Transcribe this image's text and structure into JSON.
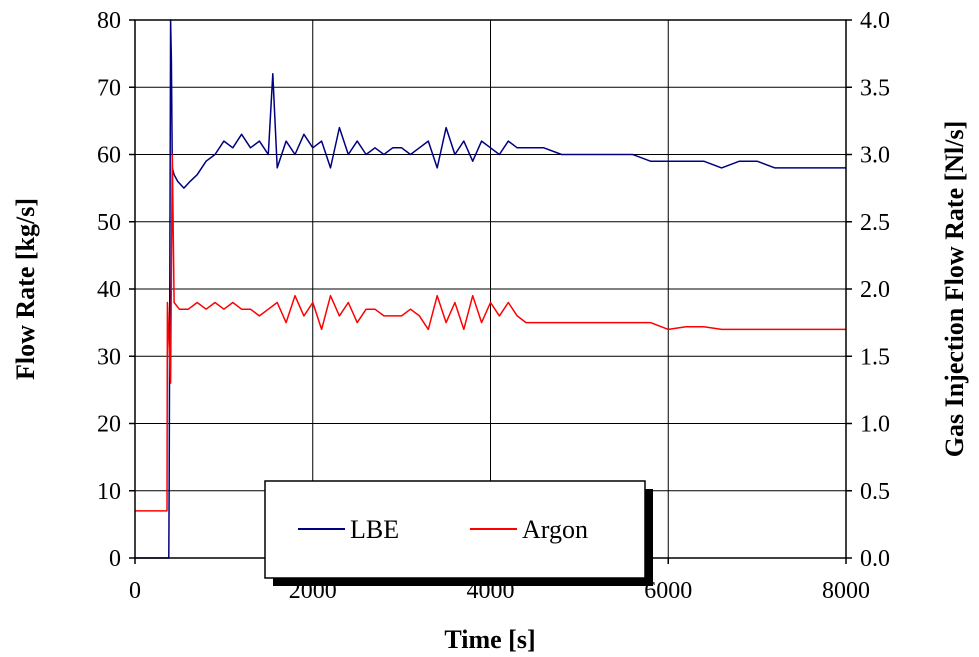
{
  "chart_data": {
    "type": "line",
    "xlabel": "Time [s]",
    "ylabel": "Flow Rate [kg/s]",
    "y2label": "Gas Injection Flow Rate [Nl/s]",
    "xlim": [
      0,
      8000
    ],
    "ylim": [
      0,
      80
    ],
    "y2lim": [
      0,
      4
    ],
    "x_ticks": [
      "0",
      "2000",
      "4000",
      "6000",
      "8000"
    ],
    "y_ticks": [
      "0",
      "10",
      "20",
      "30",
      "40",
      "50",
      "60",
      "70",
      "80"
    ],
    "y2_ticks": [
      "0.0",
      "0.5",
      "1.0",
      "1.5",
      "2.0",
      "2.5",
      "3.0",
      "3.5",
      "4.0"
    ],
    "grid": true,
    "legend_position": "bottom-center",
    "series": [
      {
        "name": "LBE",
        "axis": "left",
        "color": "#000080",
        "x": [
          0,
          380,
          385,
          400,
          410,
          420,
          440,
          480,
          550,
          620,
          700,
          800,
          900,
          1000,
          1100,
          1200,
          1300,
          1400,
          1500,
          1550,
          1600,
          1700,
          1800,
          1900,
          2000,
          2100,
          2200,
          2300,
          2400,
          2500,
          2600,
          2700,
          2800,
          2900,
          3000,
          3100,
          3200,
          3300,
          3400,
          3500,
          3600,
          3700,
          3800,
          3900,
          4000,
          4100,
          4200,
          4300,
          4400,
          4600,
          4800,
          5000,
          5200,
          5400,
          5600,
          5800,
          6000,
          6200,
          6400,
          6600,
          6800,
          7000,
          7200,
          7400,
          7600,
          7800,
          8000
        ],
        "values": [
          0,
          0,
          12,
          80,
          74,
          58,
          57,
          56,
          55,
          56,
          57,
          59,
          60,
          62,
          61,
          63,
          61,
          62,
          60,
          72,
          58,
          62,
          60,
          63,
          61,
          62,
          58,
          64,
          60,
          62,
          60,
          61,
          60,
          61,
          61,
          60,
          61,
          62,
          58,
          64,
          60,
          62,
          59,
          62,
          61,
          60,
          62,
          61,
          61,
          61,
          60,
          60,
          60,
          60,
          60,
          59,
          59,
          59,
          59,
          58,
          59,
          59,
          58,
          58,
          58,
          58,
          58
        ]
      },
      {
        "name": "Argon",
        "axis": "right",
        "color": "#ff0000",
        "x": [
          0,
          360,
          365,
          400,
          420,
          440,
          500,
          600,
          700,
          800,
          900,
          1000,
          1100,
          1200,
          1300,
          1400,
          1500,
          1600,
          1700,
          1800,
          1900,
          2000,
          2100,
          2200,
          2300,
          2400,
          2500,
          2600,
          2700,
          2800,
          2900,
          3000,
          3100,
          3200,
          3300,
          3400,
          3500,
          3600,
          3700,
          3800,
          3900,
          4000,
          4100,
          4200,
          4300,
          4400,
          4600,
          4800,
          5000,
          5200,
          5400,
          5600,
          5800,
          6000,
          6200,
          6400,
          6600,
          6800,
          7000,
          7200,
          7400,
          7600,
          7800,
          8000
        ],
        "values": [
          0.35,
          0.35,
          1.9,
          1.3,
          3.0,
          1.9,
          1.85,
          1.85,
          1.9,
          1.85,
          1.9,
          1.85,
          1.9,
          1.85,
          1.85,
          1.8,
          1.85,
          1.9,
          1.75,
          1.95,
          1.8,
          1.9,
          1.7,
          1.95,
          1.8,
          1.9,
          1.75,
          1.85,
          1.85,
          1.8,
          1.8,
          1.8,
          1.85,
          1.8,
          1.7,
          1.95,
          1.75,
          1.9,
          1.7,
          1.95,
          1.75,
          1.9,
          1.8,
          1.9,
          1.8,
          1.75,
          1.75,
          1.75,
          1.75,
          1.75,
          1.75,
          1.75,
          1.75,
          1.7,
          1.72,
          1.72,
          1.7,
          1.7,
          1.7,
          1.7,
          1.7,
          1.7,
          1.7,
          1.7
        ]
      }
    ]
  }
}
